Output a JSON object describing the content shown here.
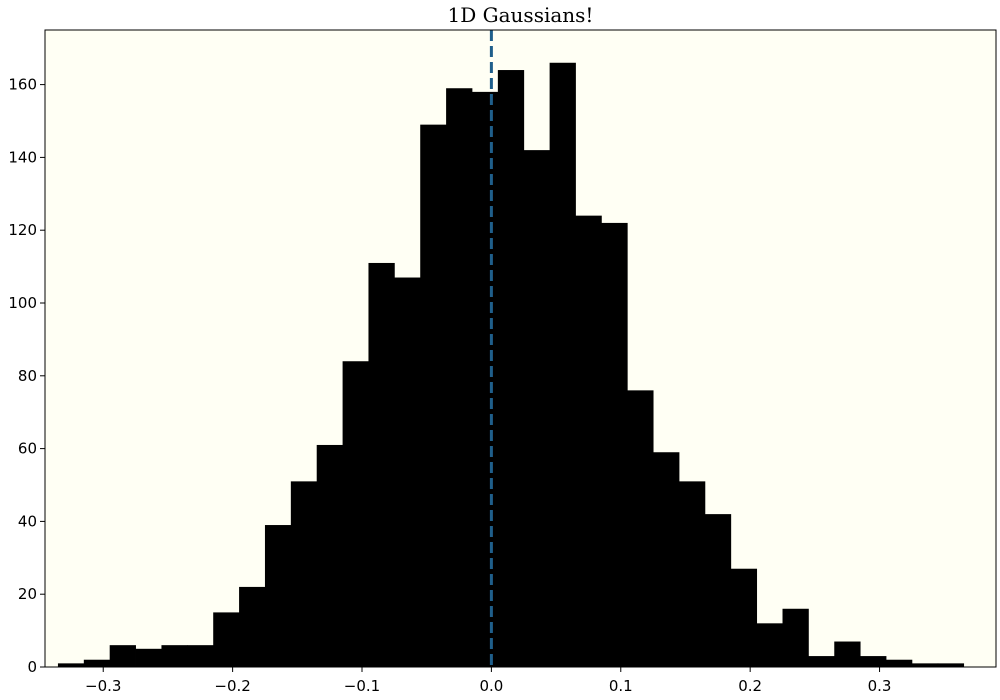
{
  "chart_data": {
    "type": "bar",
    "title": "1D Gaussians!",
    "xlabel": "",
    "ylabel": "",
    "xlim": [
      -0.345,
      0.39
    ],
    "ylim": [
      0,
      175
    ],
    "grid": false,
    "background_color": "#fffff4",
    "bar_color": "#000000",
    "reference_line": {
      "x": 0.0,
      "style": "dashed",
      "color": "#1f5f8b"
    },
    "bin_start": -0.335,
    "bin_width": 0.02,
    "values": [
      1,
      2,
      6,
      5,
      6,
      6,
      15,
      22,
      39,
      51,
      61,
      84,
      111,
      107,
      149,
      159,
      158,
      164,
      142,
      166,
      124,
      122,
      76,
      59,
      51,
      42,
      27,
      12,
      16,
      3,
      7,
      3,
      2,
      1,
      1
    ],
    "xticks": [
      -0.3,
      -0.2,
      -0.1,
      0.0,
      0.1,
      0.2,
      0.3
    ],
    "xtick_labels": [
      "−0.3",
      "−0.2",
      "−0.1",
      "0.0",
      "0.1",
      "0.2",
      "0.3"
    ],
    "yticks": [
      0,
      20,
      40,
      60,
      80,
      100,
      120,
      140,
      160
    ],
    "ytick_labels": [
      "0",
      "20",
      "40",
      "60",
      "80",
      "100",
      "120",
      "140",
      "160"
    ]
  }
}
